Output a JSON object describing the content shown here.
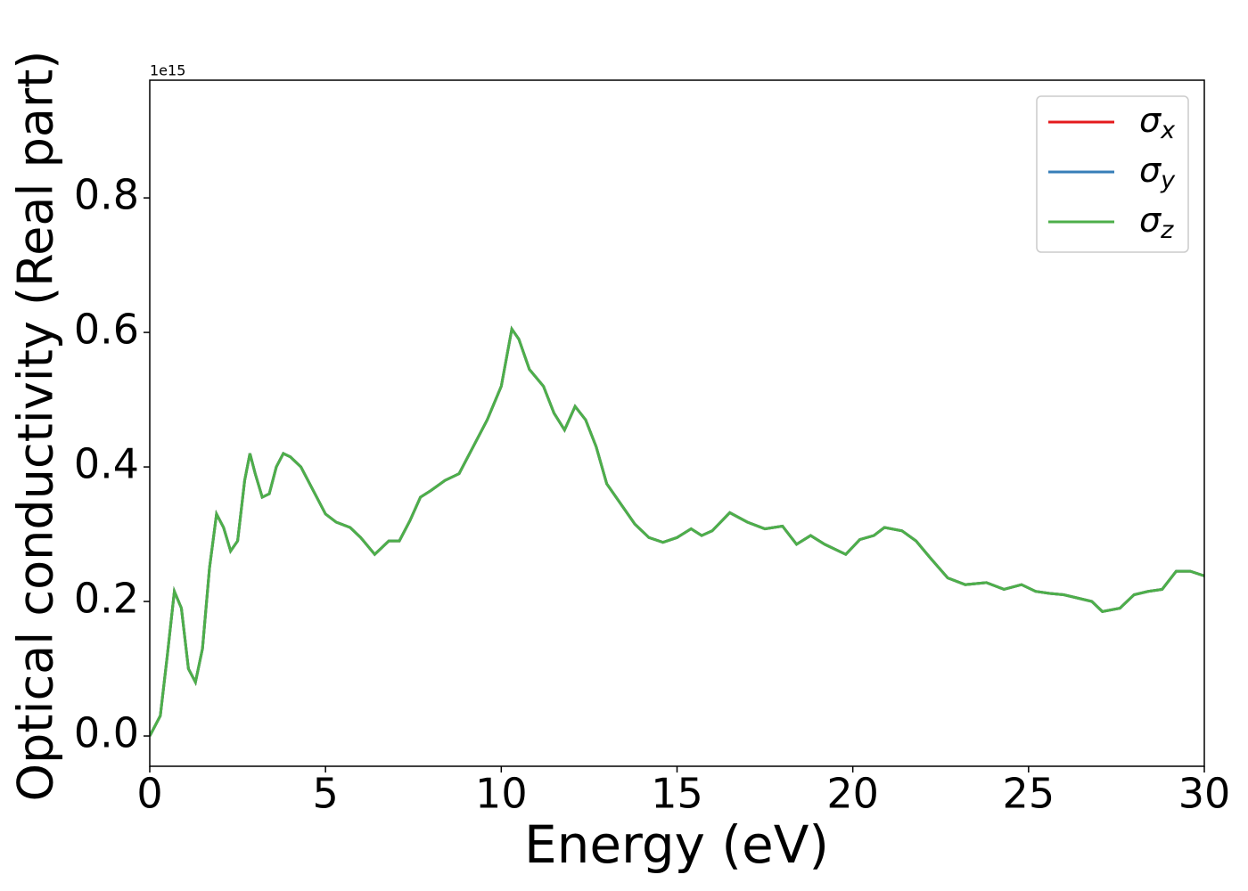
{
  "chart_data": {
    "type": "line",
    "xlabel": "Energy (eV)",
    "ylabel": "Optical conductivity (Real part)",
    "offset_text": "1e15",
    "x": [
      0,
      0.3,
      0.5,
      0.7,
      0.9,
      1.1,
      1.3,
      1.5,
      1.7,
      1.9,
      2.1,
      2.3,
      2.5,
      2.7,
      2.85,
      3.0,
      3.2,
      3.4,
      3.6,
      3.8,
      4.0,
      4.3,
      4.6,
      5.0,
      5.3,
      5.7,
      6.0,
      6.4,
      6.8,
      7.1,
      7.4,
      7.7,
      8.0,
      8.4,
      8.8,
      9.2,
      9.6,
      10.0,
      10.3,
      10.5,
      10.8,
      11.2,
      11.5,
      11.8,
      12.1,
      12.4,
      12.7,
      13.0,
      13.4,
      13.8,
      14.2,
      14.6,
      15.0,
      15.4,
      15.7,
      16.0,
      16.5,
      17.0,
      17.5,
      18.0,
      18.4,
      18.8,
      19.2,
      19.8,
      20.2,
      20.6,
      20.9,
      21.4,
      21.8,
      22.2,
      22.7,
      23.2,
      23.8,
      24.3,
      24.8,
      25.2,
      25.6,
      26.0,
      26.4,
      26.8,
      27.1,
      27.6,
      28.0,
      28.4,
      28.8,
      29.2,
      29.6,
      30.0
    ],
    "series": [
      {
        "name": "σx",
        "color": "#e41a1c",
        "values": [
          0,
          0.03,
          0.12,
          0.215,
          0.19,
          0.1,
          0.08,
          0.13,
          0.25,
          0.33,
          0.31,
          0.275,
          0.29,
          0.38,
          0.42,
          0.39,
          0.355,
          0.36,
          0.4,
          0.42,
          0.415,
          0.4,
          0.37,
          0.33,
          0.318,
          0.31,
          0.295,
          0.27,
          0.29,
          0.29,
          0.32,
          0.355,
          0.365,
          0.38,
          0.39,
          0.43,
          0.47,
          0.52,
          0.605,
          0.59,
          0.545,
          0.52,
          0.48,
          0.455,
          0.49,
          0.47,
          0.43,
          0.375,
          0.345,
          0.315,
          0.295,
          0.288,
          0.295,
          0.308,
          0.298,
          0.305,
          0.332,
          0.318,
          0.308,
          0.312,
          0.285,
          0.298,
          0.285,
          0.27,
          0.292,
          0.298,
          0.31,
          0.305,
          0.29,
          0.265,
          0.235,
          0.225,
          0.228,
          0.218,
          0.225,
          0.215,
          0.212,
          0.21,
          0.205,
          0.2,
          0.185,
          0.19,
          0.21,
          0.215,
          0.218,
          0.245,
          0.245,
          0.238
        ]
      },
      {
        "name": "σy",
        "color": "#377eb8",
        "values": [
          0,
          0.03,
          0.12,
          0.215,
          0.19,
          0.1,
          0.08,
          0.13,
          0.25,
          0.33,
          0.31,
          0.275,
          0.29,
          0.38,
          0.42,
          0.39,
          0.355,
          0.36,
          0.4,
          0.42,
          0.415,
          0.4,
          0.37,
          0.33,
          0.318,
          0.31,
          0.295,
          0.27,
          0.29,
          0.29,
          0.32,
          0.355,
          0.365,
          0.38,
          0.39,
          0.43,
          0.47,
          0.52,
          0.605,
          0.59,
          0.545,
          0.52,
          0.48,
          0.455,
          0.49,
          0.47,
          0.43,
          0.375,
          0.345,
          0.315,
          0.295,
          0.288,
          0.295,
          0.308,
          0.298,
          0.305,
          0.332,
          0.318,
          0.308,
          0.312,
          0.285,
          0.298,
          0.285,
          0.27,
          0.292,
          0.298,
          0.31,
          0.305,
          0.29,
          0.265,
          0.235,
          0.225,
          0.228,
          0.218,
          0.225,
          0.215,
          0.212,
          0.21,
          0.205,
          0.2,
          0.185,
          0.19,
          0.21,
          0.215,
          0.218,
          0.245,
          0.245,
          0.238
        ]
      },
      {
        "name": "σz",
        "color": "#4daf4a",
        "values": [
          0,
          0.03,
          0.12,
          0.215,
          0.19,
          0.1,
          0.08,
          0.13,
          0.25,
          0.33,
          0.31,
          0.275,
          0.29,
          0.38,
          0.42,
          0.39,
          0.355,
          0.36,
          0.4,
          0.42,
          0.415,
          0.4,
          0.37,
          0.33,
          0.318,
          0.31,
          0.295,
          0.27,
          0.29,
          0.29,
          0.32,
          0.355,
          0.365,
          0.38,
          0.39,
          0.43,
          0.47,
          0.52,
          0.605,
          0.59,
          0.545,
          0.52,
          0.48,
          0.455,
          0.49,
          0.47,
          0.43,
          0.375,
          0.345,
          0.315,
          0.295,
          0.288,
          0.295,
          0.308,
          0.298,
          0.305,
          0.332,
          0.318,
          0.308,
          0.312,
          0.285,
          0.298,
          0.285,
          0.27,
          0.292,
          0.298,
          0.31,
          0.305,
          0.29,
          0.265,
          0.235,
          0.225,
          0.228,
          0.218,
          0.225,
          0.215,
          0.212,
          0.21,
          0.205,
          0.2,
          0.185,
          0.19,
          0.21,
          0.215,
          0.218,
          0.245,
          0.245,
          0.238
        ]
      }
    ],
    "xlim": [
      0,
      30
    ],
    "xticks": [
      0,
      5,
      10,
      15,
      20,
      25,
      30
    ],
    "ylim": [
      -0.045,
      0.975
    ],
    "yticks": [
      {
        "value": 0,
        "label": "0.0"
      },
      0.2,
      0.4,
      0.6,
      0.8
    ],
    "grid": false,
    "legend": "upper right"
  }
}
